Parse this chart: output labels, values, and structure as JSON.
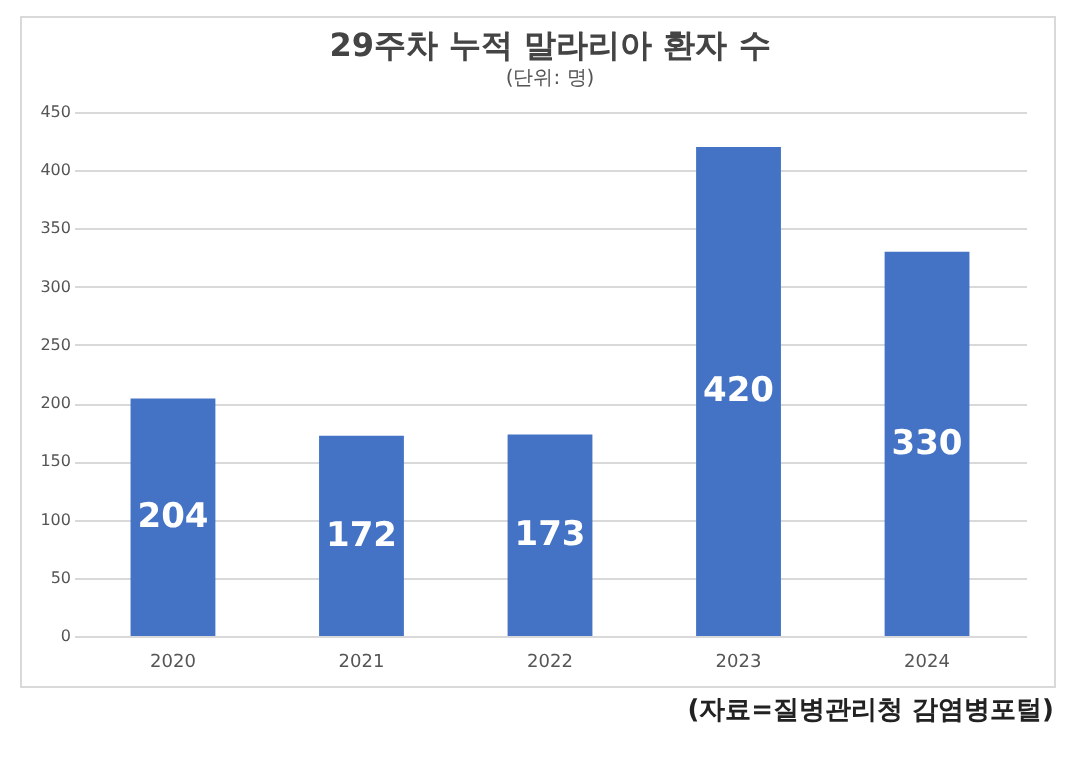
{
  "chart_data": {
    "type": "bar",
    "title": "29주차 누적 말라리아 환자 수",
    "subtitle": "(단위: 명)",
    "categories": [
      "2020",
      "2021",
      "2022",
      "2023",
      "2024"
    ],
    "values": [
      204,
      172,
      173,
      420,
      330
    ],
    "color": "#4472c4",
    "ylim": [
      0,
      450
    ],
    "yticks": [
      0,
      50,
      100,
      150,
      200,
      250,
      300,
      350,
      400,
      450
    ],
    "grid": "y",
    "data_labels": true,
    "annotations": [
      "(자료=질병관리청 감염병포털)"
    ]
  }
}
